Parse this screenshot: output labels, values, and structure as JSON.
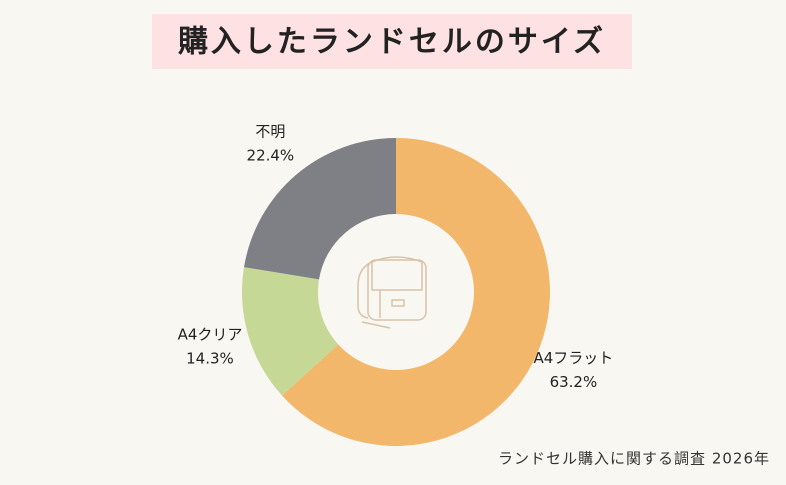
{
  "chart_data": {
    "type": "donut",
    "title": "購入したランドセルのサイズ",
    "categories": [
      "A4フラット",
      "A4クリア",
      "不明"
    ],
    "values": [
      63.2,
      14.3,
      22.4
    ],
    "value_labels": [
      "63.2%",
      "14.3%",
      "22.4%"
    ],
    "colors": [
      "#f3b76b",
      "#c6d895",
      "#7f7f86"
    ],
    "source": "ランドセル購入に関する調査 2026年"
  }
}
